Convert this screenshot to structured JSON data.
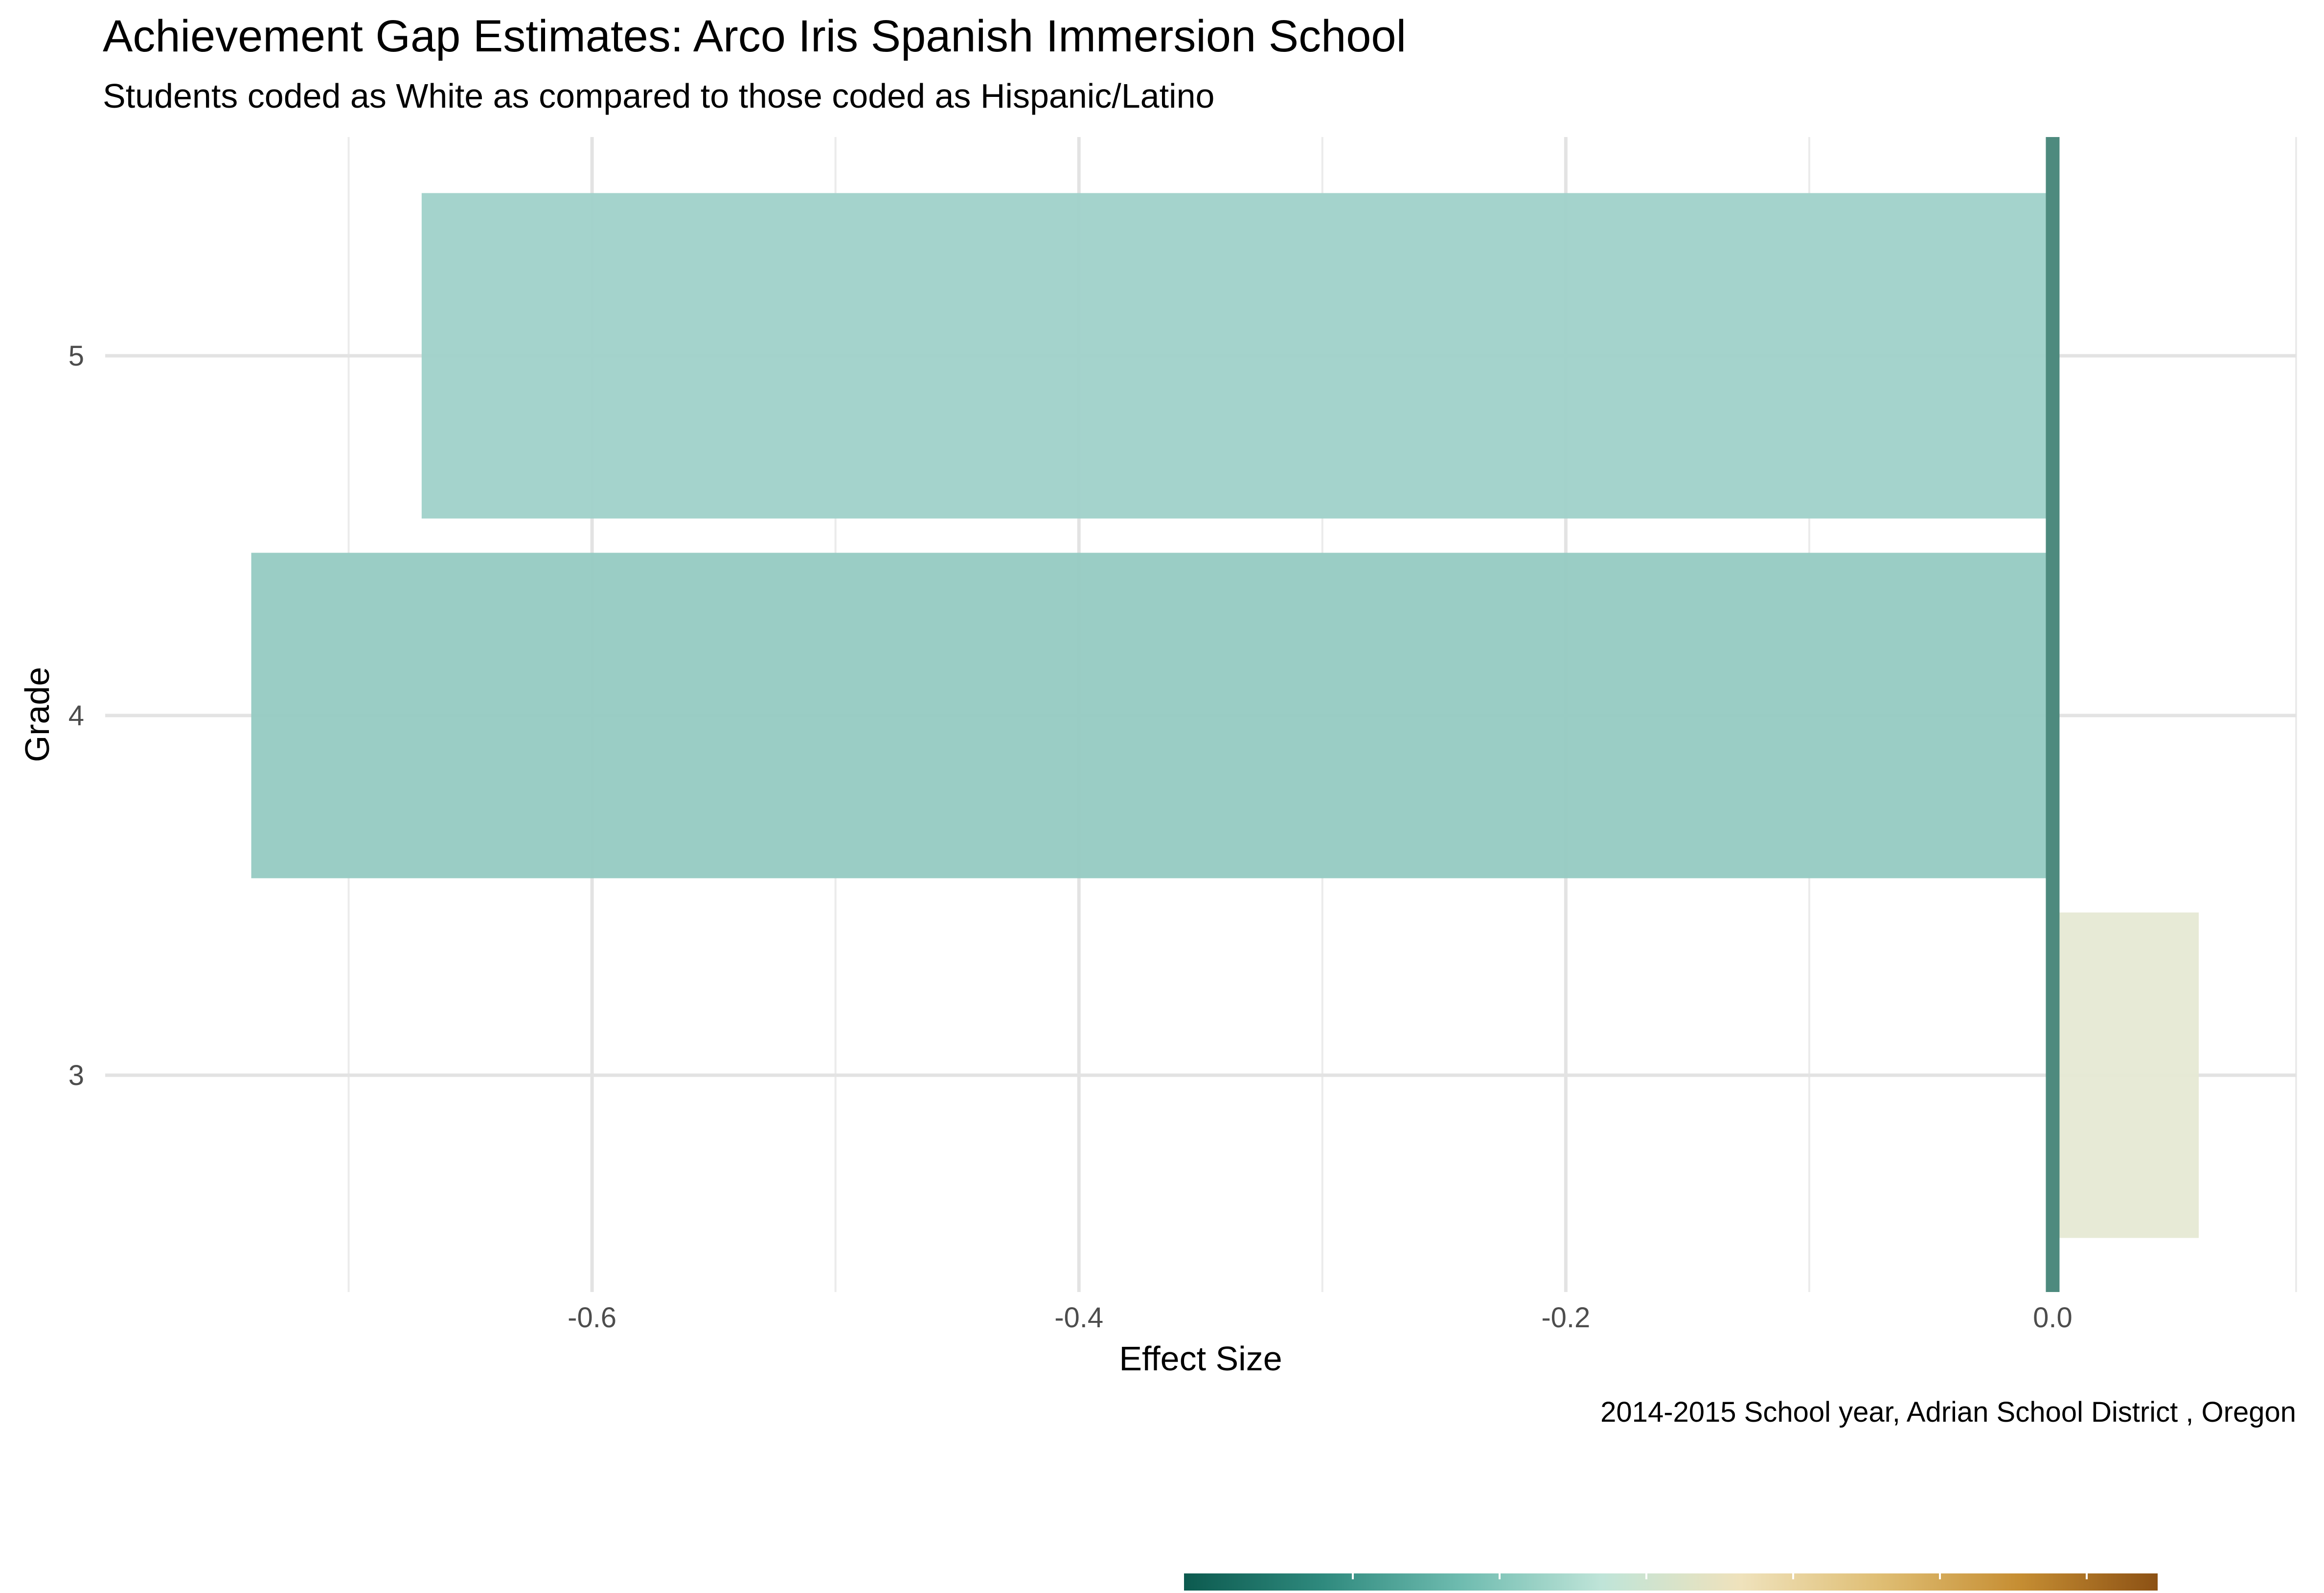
{
  "chart_data": {
    "type": "bar",
    "orientation": "horizontal",
    "title": "Achievement Gap Estimates: Arco Iris Spanish Immersion School",
    "subtitle": "Students coded as White as compared to those coded as Hispanic/Latino",
    "caption": "2014-2015 School year,  Adrian School District , Oregon",
    "xlabel": "Effect Size",
    "ylabel": "Grade",
    "categories": [
      "3",
      "4",
      "5"
    ],
    "values": [
      0.06,
      -0.74,
      -0.67
    ],
    "xlim": [
      -0.8,
      0.1
    ],
    "x_ticks": [
      -0.6,
      -0.4,
      -0.2,
      0.0
    ],
    "x_tick_labels": [
      "-0.6",
      "-0.4",
      "-0.2",
      "0.0"
    ],
    "y_tick_labels": [
      "3",
      "4",
      "5"
    ],
    "grid": true,
    "reference_line": 0,
    "bar_colors": [
      "#e6e9d5",
      "#97cbc3",
      "#a1d2ca"
    ],
    "reference_line_color": "#4e8a7e",
    "legend": {
      "type": "colorbar",
      "placement": "bottom",
      "colors": [
        "#0c5a4f",
        "#2f8a7e",
        "#6fbcb0",
        "#bfe4d8",
        "#efe2bc",
        "#dfbe74",
        "#c68e33",
        "#8c5114"
      ]
    }
  }
}
